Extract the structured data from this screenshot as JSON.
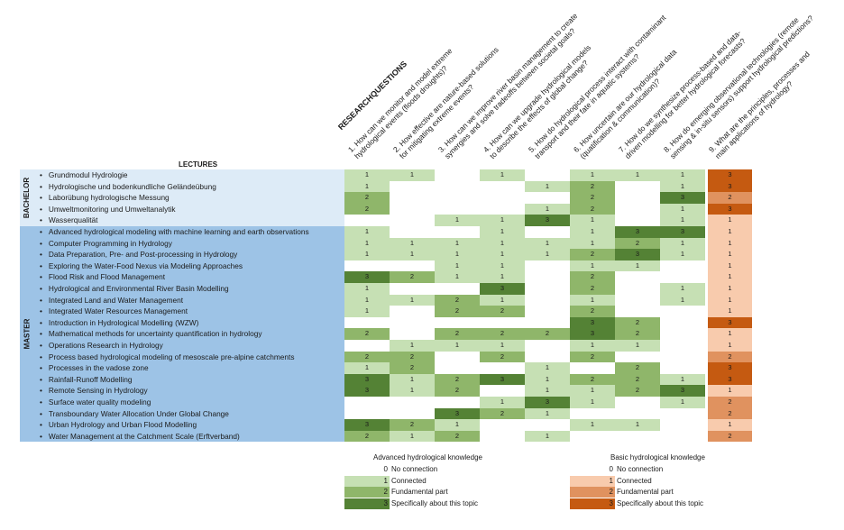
{
  "headers": {
    "research_title": "RESEARCHQUESTIONS",
    "lectures_title": "LECTURES",
    "questions": [
      [
        "1. How can we monitor and model extreme",
        "hydrological events (floods droughts)?"
      ],
      [
        "2. How effective are nature-based solutions",
        "for mitigating extreme events?"
      ],
      [
        "3. How can we improve river basin management to create",
        "synergies and solve tradeoffs between societal goals?"
      ],
      [
        "4. How can we upgrade hydrological models",
        "to describe the effects of global change?"
      ],
      [
        "5. How do hydrological process interact with contaminant",
        "transport and their fate in aquatic systems?"
      ],
      [
        "6. How uncertain are our hydrological data",
        "(quatification & communication)?"
      ],
      [
        "7. How do we synthesize process-based and data-",
        "driven modelling for better hydrological forecasts?"
      ],
      [
        "8. How do emerging observational technologies (remote",
        "sensing & in-situ sensors) support hydrological predictions?"
      ],
      [
        "9. What are the principles, processes and",
        "main applications of hydrology?"
      ]
    ]
  },
  "groups": {
    "bachelor": "BACHELOR",
    "master": "MASTER"
  },
  "rows": [
    {
      "label": "Grundmodul Hydrologie",
      "group": "bachelor",
      "values": [
        1,
        1,
        0,
        1,
        0,
        1,
        1,
        1,
        3
      ]
    },
    {
      "label": "Hydrologische und bodenkundliche Geländeübung",
      "group": "bachelor",
      "values": [
        1,
        0,
        0,
        0,
        1,
        2,
        0,
        1,
        3
      ]
    },
    {
      "label": "Laborübung hydrologische Messung",
      "group": "bachelor",
      "values": [
        2,
        0,
        0,
        0,
        0,
        2,
        0,
        3,
        2
      ]
    },
    {
      "label": "Umweltmonitoring und Umweltanalytik",
      "group": "bachelor",
      "values": [
        2,
        0,
        0,
        0,
        1,
        2,
        0,
        1,
        3
      ]
    },
    {
      "label": "Wasserqualität",
      "group": "bachelor",
      "values": [
        0,
        0,
        1,
        1,
        3,
        1,
        0,
        1,
        1
      ]
    },
    {
      "label": "Advanced hydrological modeling with machine learning and earth observations",
      "group": "master",
      "values": [
        1,
        0,
        0,
        1,
        0,
        1,
        3,
        3,
        1
      ]
    },
    {
      "label": "Computer Programming in Hydrology",
      "group": "master",
      "values": [
        1,
        1,
        1,
        1,
        1,
        1,
        2,
        1,
        1
      ]
    },
    {
      "label": "Data Preparation, Pre- and Post-processing in Hydrology",
      "group": "master",
      "values": [
        1,
        1,
        1,
        1,
        1,
        2,
        3,
        1,
        1
      ]
    },
    {
      "label": "Exploring the Water-Food Nexus via Modeling Approaches",
      "group": "master",
      "values": [
        0,
        0,
        1,
        1,
        0,
        1,
        1,
        0,
        1
      ]
    },
    {
      "label": "Flood Risk and Flood Management",
      "group": "master",
      "values": [
        3,
        2,
        1,
        1,
        0,
        2,
        0,
        0,
        1
      ]
    },
    {
      "label": "Hydrological and Environmental River Basin Modelling",
      "group": "master",
      "values": [
        1,
        0,
        0,
        3,
        0,
        2,
        0,
        1,
        1
      ]
    },
    {
      "label": "Integrated Land and Water Management",
      "group": "master",
      "values": [
        1,
        1,
        2,
        1,
        0,
        1,
        0,
        1,
        1
      ]
    },
    {
      "label": "Integrated Water Resources Management",
      "group": "master",
      "values": [
        1,
        0,
        2,
        2,
        0,
        2,
        0,
        0,
        1
      ]
    },
    {
      "label": "Introduction in Hydrological Modelling (WZW)",
      "group": "master",
      "values": [
        0,
        0,
        0,
        0,
        0,
        3,
        2,
        0,
        3
      ]
    },
    {
      "label": "Mathematical methods for uncertainty quantification in hydrology",
      "group": "master",
      "values": [
        2,
        0,
        2,
        2,
        2,
        3,
        2,
        0,
        1
      ]
    },
    {
      "label": "Operations Research in Hydrology",
      "group": "master",
      "values": [
        0,
        1,
        1,
        1,
        0,
        1,
        1,
        0,
        1
      ]
    },
    {
      "label": "Process based hydrological modeling of mesoscale pre-alpine catchments",
      "group": "master",
      "values": [
        2,
        2,
        0,
        2,
        0,
        2,
        0,
        0,
        2
      ]
    },
    {
      "label": "Processes in the vadose zone",
      "group": "master",
      "values": [
        1,
        2,
        0,
        0,
        1,
        0,
        2,
        0,
        3
      ]
    },
    {
      "label": "Rainfall-Runoff Modelling",
      "group": "master",
      "values": [
        3,
        1,
        2,
        3,
        1,
        2,
        2,
        1,
        3
      ]
    },
    {
      "label": "Remote Sensing in Hydrology",
      "group": "master",
      "values": [
        3,
        1,
        2,
        0,
        1,
        1,
        2,
        3,
        1
      ]
    },
    {
      "label": "Surface water quality modeling",
      "group": "master",
      "values": [
        0,
        0,
        0,
        1,
        3,
        1,
        0,
        1,
        2
      ]
    },
    {
      "label": "Transboundary Water Allocation Under Global Change",
      "group": "master",
      "values": [
        0,
        0,
        3,
        2,
        1,
        0,
        0,
        0,
        2
      ]
    },
    {
      "label": "Urban Hydrology and Urban Flood Modelling",
      "group": "master",
      "values": [
        3,
        2,
        1,
        0,
        0,
        1,
        1,
        0,
        1
      ]
    },
    {
      "label": "Water Management at the Catchment Scale (Erftverband)",
      "group": "master",
      "values": [
        2,
        1,
        2,
        0,
        1,
        0,
        0,
        0,
        2
      ]
    }
  ],
  "colors": {
    "green": [
      "#ffffff",
      "#c6e0b4",
      "#8fb66a",
      "#548235"
    ],
    "orange": [
      "#ffffff",
      "#f8cbad",
      "#e0925f",
      "#c55a11"
    ]
  },
  "legend": {
    "advanced": {
      "title": "Advanced hydrological knowledge",
      "items": [
        {
          "value": "0",
          "label": "No connection"
        },
        {
          "value": "1",
          "label": "Connected"
        },
        {
          "value": "2",
          "label": "Fundamental part"
        },
        {
          "value": "3",
          "label": "Specifically about this topic"
        }
      ]
    },
    "basic": {
      "title": "Basic hydrological knowledge",
      "items": [
        {
          "value": "0",
          "label": "No connection"
        },
        {
          "value": "1",
          "label": "Connected"
        },
        {
          "value": "2",
          "label": "Fundamental part"
        },
        {
          "value": "3",
          "label": "Specifically about this topic"
        }
      ]
    }
  }
}
